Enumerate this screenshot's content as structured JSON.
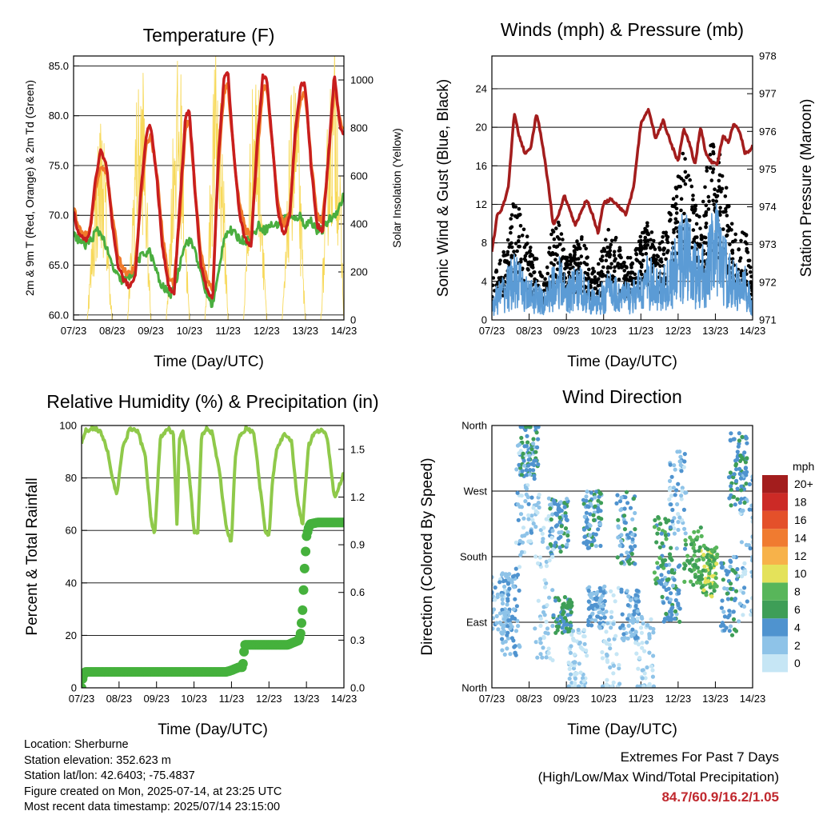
{
  "footer": {
    "location": "Location: Sherburne",
    "elevation": "Station elevation: 352.623 m",
    "latlon": "Station lat/lon: 42.6403; -75.4837",
    "created": "Figure created on Mon, 2025-07-14, at 23:25 UTC",
    "recent": "Most recent data timestamp: 2025/07/14 23:15:00"
  },
  "extremes": {
    "title": "Extremes For Past 7 Days",
    "subtitle": "(High/Low/Max Wind/Total Precipitation)",
    "values": "84.7/60.9/16.2/1.05"
  },
  "colors": {
    "temp2m": "#c81e1e",
    "temp9m": "#f07a2a",
    "dewpoint": "#4aae3f",
    "solar": "#f7d95a",
    "gust": "#000000",
    "sonic": "#5b9bd5",
    "pressure": "#a31d1d",
    "rh": "#8fc94a",
    "precip": "#45b13c"
  },
  "chart_data": [
    {
      "type": "line",
      "title": "Temperature (F)",
      "xlabel": "Time (Day/UTC)",
      "ylabel": "2m & 9m T (Red, Orange) & 2m Td (Green)",
      "y2label": "Solar Insolation (Yellow)",
      "x_ticks": [
        "07/23",
        "08/23",
        "09/23",
        "10/23",
        "11/23",
        "12/23",
        "13/23",
        "14/23"
      ],
      "y_ticks": [
        "60.0",
        "65.0",
        "70.0",
        "75.0",
        "80.0",
        "85.0"
      ],
      "y2_ticks": [
        "0",
        "200",
        "400",
        "600",
        "800",
        "1000"
      ],
      "ylim": [
        59.5,
        86
      ],
      "y2lim": [
        0,
        1100
      ],
      "xlim": [
        0,
        7
      ],
      "grid": true,
      "series": [
        {
          "x": [
            0,
            0.1,
            0.25,
            0.4,
            0.55,
            0.7,
            0.85,
            1.0,
            1.15,
            1.3,
            1.45,
            1.6,
            1.75,
            1.9,
            2.0,
            2.15,
            2.3,
            2.45,
            2.6,
            2.75,
            2.9,
            3.0,
            3.15,
            3.3,
            3.45,
            3.6,
            3.75,
            3.9,
            4.0,
            4.15,
            4.3,
            4.45,
            4.6,
            4.75,
            4.9,
            5.0,
            5.15,
            5.3,
            5.45,
            5.6,
            5.75,
            5.9,
            6.0,
            6.15,
            6.3,
            6.45,
            6.6,
            6.75,
            6.9,
            7.0
          ],
          "values": [
            70.5,
            68.5,
            67.5,
            67.8,
            73,
            76.5,
            75,
            69,
            65,
            63.5,
            62.8,
            64,
            73,
            78.5,
            79,
            74,
            67,
            63,
            62,
            71,
            80,
            80.5,
            72,
            65,
            62.5,
            61.5,
            76,
            84,
            84.2,
            76,
            70,
            67.5,
            67,
            77,
            84,
            84,
            77,
            70,
            68,
            70,
            79,
            83.5,
            83,
            75,
            69,
            68.5,
            76,
            84,
            79,
            78
          ]
        },
        {
          "x": [
            0,
            0.1,
            0.25,
            0.4,
            0.55,
            0.7,
            0.85,
            1.0,
            1.15,
            1.3,
            1.45,
            1.6,
            1.75,
            1.9,
            2.0,
            2.15,
            2.3,
            2.45,
            2.6,
            2.75,
            2.9,
            3.0,
            3.15,
            3.3,
            3.45,
            3.6,
            3.75,
            3.9,
            4.0,
            4.15,
            4.3,
            4.45,
            4.6,
            4.75,
            4.9,
            5.0,
            5.15,
            5.3,
            5.45,
            5.6,
            5.75,
            5.9,
            6.0,
            6.15,
            6.3,
            6.45,
            6.6,
            6.75,
            6.9,
            7.0
          ],
          "values": [
            71,
            69,
            68,
            68,
            72,
            75,
            74.5,
            70,
            66,
            64.5,
            64,
            65,
            72,
            77.5,
            78,
            74.5,
            68,
            64,
            63,
            70,
            79,
            79.5,
            72.5,
            66,
            63.5,
            62.5,
            75,
            82.5,
            83,
            76,
            71,
            68.5,
            68,
            76,
            82.5,
            83,
            77,
            71,
            69,
            70.5,
            78,
            82,
            82,
            75.5,
            70,
            69.5,
            75.5,
            83,
            79.5,
            78.5
          ]
        },
        {
          "x": [
            0,
            0.15,
            0.3,
            0.45,
            0.6,
            0.75,
            0.9,
            1.05,
            1.2,
            1.35,
            1.5,
            1.65,
            1.8,
            1.95,
            2.1,
            2.25,
            2.4,
            2.55,
            2.7,
            2.85,
            3.0,
            3.15,
            3.3,
            3.45,
            3.6,
            3.75,
            3.9,
            4.05,
            4.2,
            4.35,
            4.5,
            4.65,
            4.8,
            4.95,
            5.1,
            5.25,
            5.4,
            5.55,
            5.7,
            5.85,
            6.0,
            6.15,
            6.3,
            6.45,
            6.6,
            6.75,
            6.9,
            7.0
          ],
          "values": [
            68,
            67.5,
            67,
            67.5,
            68.5,
            68,
            66,
            64.5,
            63.5,
            63.5,
            64,
            65.5,
            66,
            66.5,
            65,
            63,
            62.5,
            62,
            64,
            67,
            67.5,
            66.5,
            64,
            62,
            61,
            64,
            68,
            68.5,
            68,
            67.5,
            67.5,
            68,
            69,
            68.5,
            69,
            69,
            69.5,
            70,
            69.5,
            70,
            69,
            69.5,
            68.5,
            68.5,
            69.5,
            70,
            71,
            72
          ]
        },
        {
          "x": [
            0,
            0.2,
            0.35,
            0.5,
            0.6,
            0.7,
            0.8,
            0.9,
            1.0,
            1.2,
            1.4,
            1.5,
            1.6,
            1.7,
            1.8,
            1.9,
            2.0,
            2.2,
            2.4,
            2.5,
            2.6,
            2.7,
            2.8,
            2.9,
            3.0,
            3.2,
            3.4,
            3.5,
            3.6,
            3.7,
            3.8,
            3.9,
            4.0,
            4.2,
            4.4,
            4.5,
            4.6,
            4.7,
            4.8,
            4.9,
            5.0,
            5.2,
            5.4,
            5.5,
            5.6,
            5.7,
            5.8,
            5.9,
            6.0,
            6.2,
            6.4,
            6.5,
            6.6,
            6.7,
            6.8,
            6.9,
            7.0
          ],
          "values": [
            0,
            0,
            0,
            400,
            650,
            800,
            700,
            300,
            0,
            0,
            0,
            350,
            850,
            900,
            1000,
            500,
            0,
            0,
            0,
            400,
            900,
            1000,
            950,
            400,
            0,
            0,
            0,
            350,
            900,
            1050,
            950,
            500,
            0,
            0,
            0,
            400,
            850,
            1000,
            900,
            450,
            0,
            0,
            0,
            300,
            800,
            950,
            900,
            400,
            0,
            0,
            0,
            400,
            900,
            1000,
            1080,
            600,
            0
          ]
        }
      ]
    },
    {
      "type": "line",
      "title": "Winds (mph) & Pressure (mb)",
      "xlabel": "Time (Day/UTC)",
      "ylabel": "Sonic Wind & Gust (Blue, Black)",
      "y2label": "Station Pressure (Maroon)",
      "x_ticks": [
        "07/23",
        "08/23",
        "09/23",
        "10/23",
        "11/23",
        "12/23",
        "13/23",
        "14/23"
      ],
      "y_ticks": [
        "0",
        "4",
        "8",
        "12",
        "16",
        "20",
        "24"
      ],
      "y2_ticks": [
        "971",
        "972",
        "973",
        "974",
        "975",
        "976",
        "977",
        "978"
      ],
      "ylim": [
        0,
        27.4
      ],
      "y2lim": [
        971,
        978
      ],
      "xlim": [
        0,
        7
      ],
      "grid": true,
      "series": [
        {
          "x": [
            0,
            0.2,
            0.4,
            0.6,
            0.8,
            1.0,
            1.2,
            1.4,
            1.6,
            1.8,
            2.0,
            2.2,
            2.4,
            2.6,
            2.8,
            3.0,
            3.2,
            3.4,
            3.6,
            3.8,
            4.0,
            4.2,
            4.4,
            4.6,
            4.8,
            5.0,
            5.2,
            5.4,
            5.6,
            5.8,
            6.0,
            6.2,
            6.4,
            6.6,
            6.8,
            7.0
          ],
          "values": [
            3,
            5,
            6,
            10,
            9,
            6,
            5,
            3,
            7,
            8,
            5,
            6,
            7,
            5,
            4,
            6,
            8,
            6,
            5,
            5,
            7,
            8,
            6,
            7,
            9,
            12,
            15,
            10,
            8,
            13,
            16,
            12,
            9,
            6,
            8,
            3
          ]
        },
        {
          "x": [
            0,
            0.2,
            0.4,
            0.6,
            0.8,
            1.0,
            1.2,
            1.4,
            1.6,
            1.8,
            2.0,
            2.2,
            2.4,
            2.6,
            2.8,
            3.0,
            3.2,
            3.4,
            3.6,
            3.8,
            4.0,
            4.2,
            4.4,
            4.6,
            4.8,
            5.0,
            5.2,
            5.4,
            5.6,
            5.8,
            6.0,
            6.2,
            6.4,
            6.6,
            6.8,
            7.0
          ],
          "values": [
            2,
            3,
            4,
            5,
            4,
            3,
            3,
            2,
            4,
            5,
            3,
            4,
            4,
            3,
            2,
            3,
            4,
            3,
            3,
            3,
            4,
            5,
            4,
            4,
            5,
            7,
            9,
            6,
            5,
            7,
            9,
            7,
            5,
            4,
            4,
            2
          ]
        },
        {
          "x": [
            0,
            0.15,
            0.3,
            0.45,
            0.6,
            0.75,
            0.9,
            1.05,
            1.2,
            1.35,
            1.5,
            1.65,
            1.8,
            1.95,
            2.1,
            2.25,
            2.4,
            2.55,
            2.7,
            2.85,
            3.0,
            3.2,
            3.4,
            3.6,
            3.8,
            4.0,
            4.2,
            4.4,
            4.6,
            4.8,
            5.0,
            5.15,
            5.3,
            5.45,
            5.6,
            5.75,
            5.9,
            6.05,
            6.2,
            6.35,
            6.5,
            6.65,
            6.8,
            6.95,
            7.0
          ],
          "values": [
            972.8,
            973.8,
            974.0,
            974.6,
            976.5,
            975.8,
            975.4,
            975.6,
            976.5,
            975.7,
            974.7,
            973.5,
            973.8,
            974.3,
            973.9,
            973.5,
            973.9,
            974.2,
            973.8,
            973.3,
            974.1,
            974.2,
            974.0,
            973.8,
            974.5,
            976.2,
            976.6,
            975.8,
            976.3,
            975.7,
            975.2,
            976.1,
            975.7,
            975.1,
            976.1,
            975.4,
            975.2,
            975.1,
            975.9,
            975.7,
            976.2,
            976.0,
            975.4,
            975.5,
            975.6
          ]
        }
      ]
    },
    {
      "type": "line",
      "title": "Relative Humidity (%) & Precipitation (in)",
      "xlabel": "Time (Day/UTC)",
      "ylabel": "Percent & Total Rainfall",
      "x_ticks": [
        "07/23",
        "08/23",
        "09/23",
        "10/23",
        "11/23",
        "12/23",
        "13/23",
        "14/23"
      ],
      "y_ticks": [
        "0",
        "20",
        "40",
        "60",
        "80",
        "100"
      ],
      "y2_ticks": [
        "0.0",
        "0.3",
        "0.6",
        "0.9",
        "1.2",
        "1.5"
      ],
      "ylim": [
        0,
        100
      ],
      "y2lim": [
        0,
        1.65
      ],
      "xlim": [
        0,
        7
      ],
      "grid": true,
      "series": [
        {
          "x": [
            0,
            0.1,
            0.3,
            0.5,
            0.7,
            0.85,
            0.95,
            1.1,
            1.3,
            1.5,
            1.7,
            1.85,
            1.95,
            2.1,
            2.3,
            2.45,
            2.55,
            2.6,
            2.7,
            2.85,
            3.0,
            3.1,
            3.2,
            3.35,
            3.5,
            3.7,
            3.85,
            4.0,
            4.1,
            4.2,
            4.4,
            4.6,
            4.75,
            4.9,
            5.0,
            5.1,
            5.2,
            5.4,
            5.6,
            5.75,
            5.9,
            6.05,
            6.2,
            6.4,
            6.55,
            6.65,
            6.75,
            6.9,
            7.0
          ],
          "values": [
            93,
            98,
            99,
            98,
            90,
            78,
            74,
            92,
            99,
            98,
            88,
            65,
            58,
            95,
            99,
            97,
            60,
            95,
            98,
            85,
            60,
            58,
            96,
            99,
            97,
            80,
            62,
            55,
            88,
            96,
            99,
            97,
            78,
            60,
            58,
            80,
            90,
            97,
            94,
            72,
            62,
            92,
            97,
            98,
            96,
            84,
            72,
            78,
            82
          ]
        },
        {
          "x": [
            0,
            0.02,
            0.05,
            0.1,
            0.2,
            1.0,
            2.0,
            3.0,
            3.85,
            4.0,
            4.2,
            4.3,
            4.35,
            4.4,
            5.0,
            5.5,
            5.8,
            5.85,
            5.9,
            5.95,
            6.0,
            6.05,
            6.1,
            6.3,
            7.0
          ],
          "values": [
            0,
            0.05,
            0.08,
            0.1,
            0.1,
            0.1,
            0.1,
            0.1,
            0.1,
            0.11,
            0.13,
            0.13,
            0.27,
            0.27,
            0.27,
            0.27,
            0.3,
            0.35,
            0.5,
            0.75,
            0.95,
            1.0,
            1.03,
            1.04,
            1.04
          ]
        }
      ]
    },
    {
      "type": "scatter",
      "title": "Wind Direction",
      "xlabel": "Time (Day/UTC)",
      "ylabel": "Direction (Colored By Speed)",
      "x_ticks": [
        "07/23",
        "08/23",
        "09/23",
        "10/23",
        "11/23",
        "12/23",
        "13/23",
        "14/23"
      ],
      "y_ticks": [
        "North",
        "East",
        "South",
        "West",
        "North"
      ],
      "colorbar_title": "mph",
      "colorbar_labels": [
        "0",
        "2",
        "4",
        "6",
        "8",
        "10",
        "12",
        "14",
        "16",
        "18",
        "20+"
      ],
      "colorbar_colors": [
        "#c6e6f5",
        "#8ec3e8",
        "#4f93cf",
        "#3e9e57",
        "#58b65a",
        "#e4e25a",
        "#f7b24a",
        "#f07b30",
        "#e4502a",
        "#cc2a26",
        "#a31d1d"
      ],
      "xlim": [
        0,
        7
      ],
      "ylim": [
        0,
        360
      ],
      "grid": true
    }
  ]
}
